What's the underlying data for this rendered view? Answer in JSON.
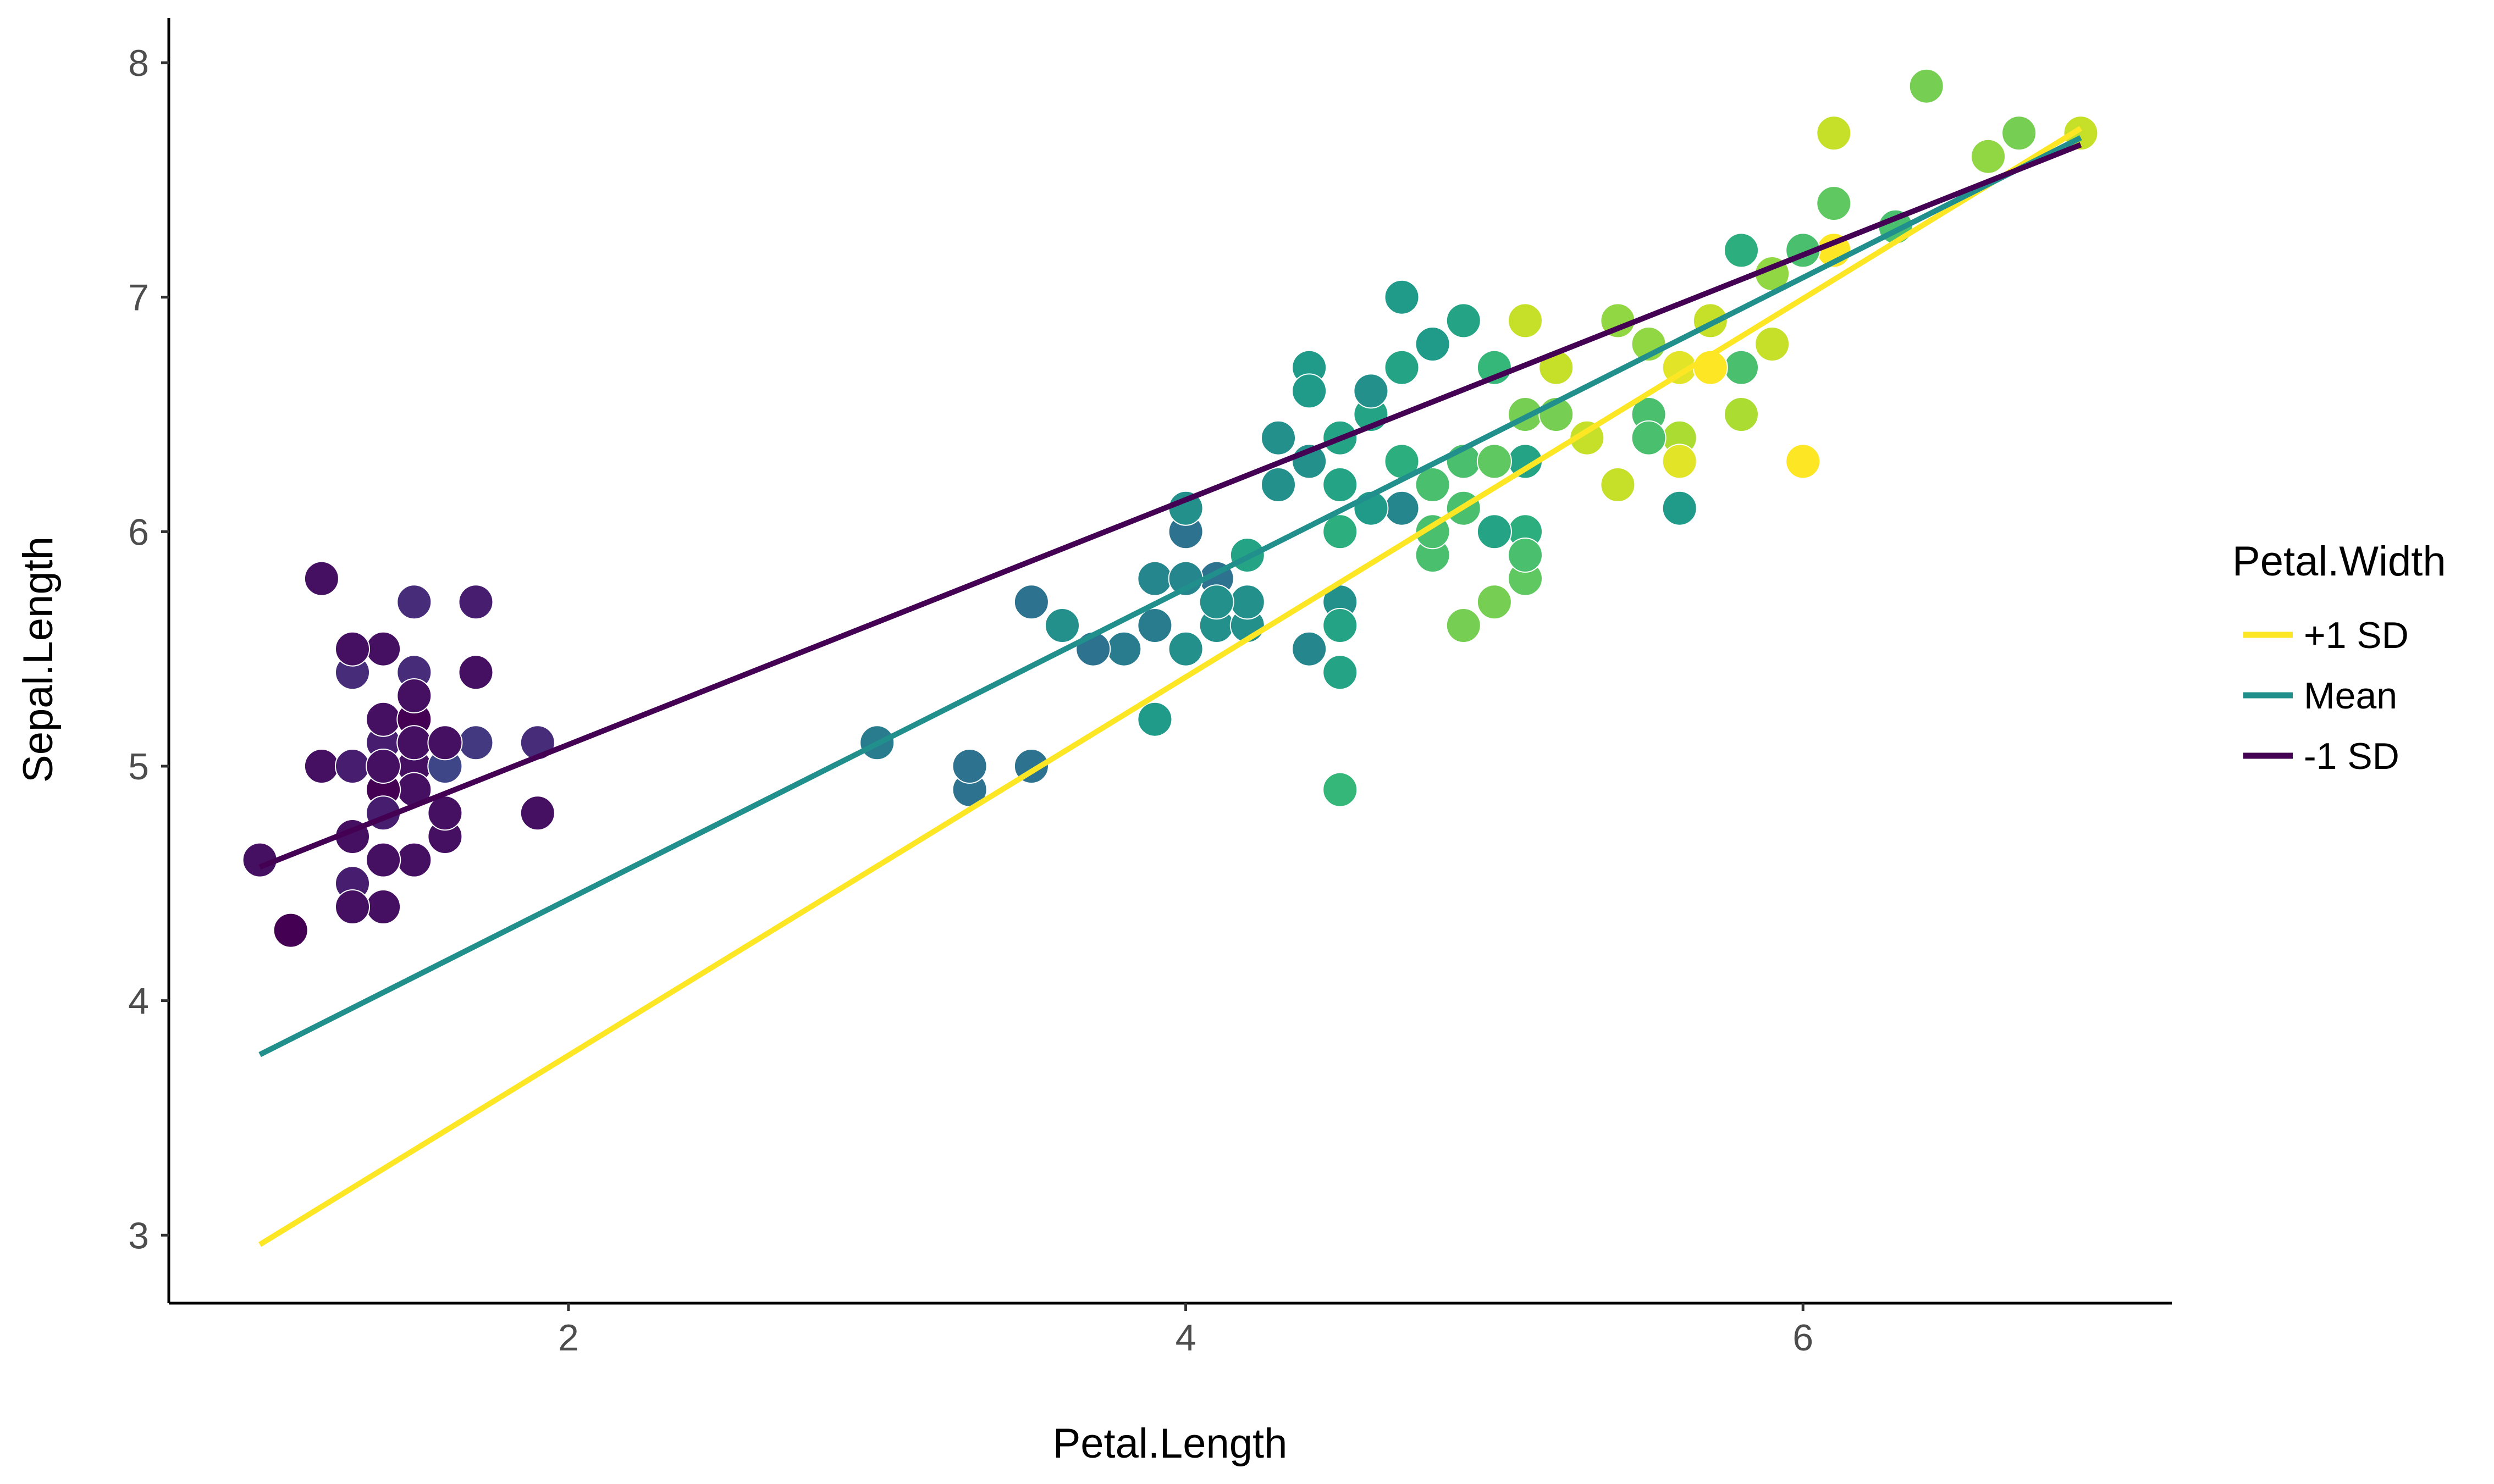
{
  "chart_data": {
    "type": "scatter",
    "xlabel": "Petal.Length",
    "ylabel": "Sepal.Length",
    "xlim": [
      0.705,
      7.195
    ],
    "ylim": [
      2.71,
      8.19
    ],
    "x_ticks": [
      2,
      4,
      6
    ],
    "y_ticks": [
      3,
      4,
      5,
      6,
      7,
      8
    ],
    "grid": false,
    "color_scale": {
      "variable": "Petal.Width",
      "min": 0.1,
      "max": 2.5,
      "palette": "viridis",
      "stops": [
        "#440154",
        "#482878",
        "#3E4A89",
        "#31688E",
        "#26828E",
        "#1F9E89",
        "#35B779",
        "#6DCD59",
        "#B4DE2C",
        "#FDE725"
      ]
    },
    "points": [
      {
        "x": 1.4,
        "y": 5.1,
        "w": 0.2
      },
      {
        "x": 1.4,
        "y": 4.9,
        "w": 0.2
      },
      {
        "x": 1.3,
        "y": 4.7,
        "w": 0.2
      },
      {
        "x": 1.5,
        "y": 4.6,
        "w": 0.2
      },
      {
        "x": 1.4,
        "y": 5.0,
        "w": 0.2
      },
      {
        "x": 1.7,
        "y": 5.4,
        "w": 0.4
      },
      {
        "x": 1.4,
        "y": 4.6,
        "w": 0.3
      },
      {
        "x": 1.5,
        "y": 5.0,
        "w": 0.2
      },
      {
        "x": 1.4,
        "y": 4.4,
        "w": 0.2
      },
      {
        "x": 1.5,
        "y": 4.9,
        "w": 0.1
      },
      {
        "x": 1.5,
        "y": 5.4,
        "w": 0.2
      },
      {
        "x": 1.6,
        "y": 4.8,
        "w": 0.2
      },
      {
        "x": 1.4,
        "y": 4.8,
        "w": 0.1
      },
      {
        "x": 1.1,
        "y": 4.3,
        "w": 0.1
      },
      {
        "x": 1.2,
        "y": 5.8,
        "w": 0.2
      },
      {
        "x": 1.5,
        "y": 5.7,
        "w": 0.4
      },
      {
        "x": 1.3,
        "y": 5.4,
        "w": 0.4
      },
      {
        "x": 1.4,
        "y": 5.1,
        "w": 0.3
      },
      {
        "x": 1.7,
        "y": 5.7,
        "w": 0.3
      },
      {
        "x": 1.5,
        "y": 5.1,
        "w": 0.3
      },
      {
        "x": 1.7,
        "y": 5.4,
        "w": 0.2
      },
      {
        "x": 1.5,
        "y": 5.1,
        "w": 0.4
      },
      {
        "x": 1.0,
        "y": 4.6,
        "w": 0.2
      },
      {
        "x": 1.7,
        "y": 5.1,
        "w": 0.5
      },
      {
        "x": 1.9,
        "y": 4.8,
        "w": 0.2
      },
      {
        "x": 1.6,
        "y": 5.0,
        "w": 0.2
      },
      {
        "x": 1.6,
        "y": 5.0,
        "w": 0.4
      },
      {
        "x": 1.5,
        "y": 5.2,
        "w": 0.2
      },
      {
        "x": 1.4,
        "y": 5.2,
        "w": 0.2
      },
      {
        "x": 1.6,
        "y": 4.7,
        "w": 0.2
      },
      {
        "x": 1.6,
        "y": 4.8,
        "w": 0.2
      },
      {
        "x": 1.5,
        "y": 5.4,
        "w": 0.4
      },
      {
        "x": 1.5,
        "y": 5.2,
        "w": 0.1
      },
      {
        "x": 1.4,
        "y": 5.5,
        "w": 0.2
      },
      {
        "x": 1.5,
        "y": 4.9,
        "w": 0.2
      },
      {
        "x": 1.2,
        "y": 5.0,
        "w": 0.2
      },
      {
        "x": 1.3,
        "y": 5.5,
        "w": 0.2
      },
      {
        "x": 1.4,
        "y": 4.9,
        "w": 0.1
      },
      {
        "x": 1.3,
        "y": 4.4,
        "w": 0.2
      },
      {
        "x": 1.5,
        "y": 5.1,
        "w": 0.2
      },
      {
        "x": 1.3,
        "y": 5.0,
        "w": 0.3
      },
      {
        "x": 1.3,
        "y": 4.5,
        "w": 0.3
      },
      {
        "x": 1.3,
        "y": 4.4,
        "w": 0.2
      },
      {
        "x": 1.6,
        "y": 5.0,
        "w": 0.6
      },
      {
        "x": 1.9,
        "y": 5.1,
        "w": 0.4
      },
      {
        "x": 1.4,
        "y": 4.8,
        "w": 0.3
      },
      {
        "x": 1.6,
        "y": 5.1,
        "w": 0.2
      },
      {
        "x": 1.4,
        "y": 4.6,
        "w": 0.2
      },
      {
        "x": 1.5,
        "y": 5.3,
        "w": 0.2
      },
      {
        "x": 1.4,
        "y": 5.0,
        "w": 0.2
      },
      {
        "x": 4.7,
        "y": 7.0,
        "w": 1.4
      },
      {
        "x": 4.5,
        "y": 6.4,
        "w": 1.5
      },
      {
        "x": 4.9,
        "y": 6.9,
        "w": 1.5
      },
      {
        "x": 4.0,
        "y": 5.5,
        "w": 1.3
      },
      {
        "x": 4.6,
        "y": 6.5,
        "w": 1.5
      },
      {
        "x": 4.5,
        "y": 5.7,
        "w": 1.3
      },
      {
        "x": 4.7,
        "y": 6.3,
        "w": 1.6
      },
      {
        "x": 3.3,
        "y": 4.9,
        "w": 1.0
      },
      {
        "x": 4.6,
        "y": 6.6,
        "w": 1.3
      },
      {
        "x": 3.9,
        "y": 5.2,
        "w": 1.4
      },
      {
        "x": 3.5,
        "y": 5.0,
        "w": 1.0
      },
      {
        "x": 4.2,
        "y": 5.9,
        "w": 1.5
      },
      {
        "x": 4.0,
        "y": 6.0,
        "w": 1.0
      },
      {
        "x": 4.7,
        "y": 6.1,
        "w": 1.4
      },
      {
        "x": 3.6,
        "y": 5.6,
        "w": 1.3
      },
      {
        "x": 4.4,
        "y": 6.7,
        "w": 1.4
      },
      {
        "x": 4.5,
        "y": 5.6,
        "w": 1.5
      },
      {
        "x": 4.1,
        "y": 5.8,
        "w": 1.0
      },
      {
        "x": 4.5,
        "y": 6.2,
        "w": 1.5
      },
      {
        "x": 3.9,
        "y": 5.6,
        "w": 1.1
      },
      {
        "x": 4.8,
        "y": 5.9,
        "w": 1.8
      },
      {
        "x": 4.0,
        "y": 6.1,
        "w": 1.3
      },
      {
        "x": 4.9,
        "y": 6.3,
        "w": 1.5
      },
      {
        "x": 4.7,
        "y": 6.1,
        "w": 1.2
      },
      {
        "x": 4.3,
        "y": 6.4,
        "w": 1.3
      },
      {
        "x": 4.4,
        "y": 6.6,
        "w": 1.4
      },
      {
        "x": 4.8,
        "y": 6.8,
        "w": 1.4
      },
      {
        "x": 5.0,
        "y": 6.7,
        "w": 1.7
      },
      {
        "x": 4.5,
        "y": 6.0,
        "w": 1.5
      },
      {
        "x": 3.5,
        "y": 5.7,
        "w": 1.0
      },
      {
        "x": 3.8,
        "y": 5.5,
        "w": 1.1
      },
      {
        "x": 3.7,
        "y": 5.5,
        "w": 1.0
      },
      {
        "x": 3.9,
        "y": 5.8,
        "w": 1.2
      },
      {
        "x": 5.1,
        "y": 6.0,
        "w": 1.6
      },
      {
        "x": 4.5,
        "y": 5.4,
        "w": 1.5
      },
      {
        "x": 4.5,
        "y": 6.0,
        "w": 1.6
      },
      {
        "x": 4.7,
        "y": 6.7,
        "w": 1.5
      },
      {
        "x": 4.4,
        "y": 6.3,
        "w": 1.3
      },
      {
        "x": 4.1,
        "y": 5.6,
        "w": 1.3
      },
      {
        "x": 4.0,
        "y": 5.5,
        "w": 1.3
      },
      {
        "x": 4.4,
        "y": 5.5,
        "w": 1.2
      },
      {
        "x": 4.6,
        "y": 6.1,
        "w": 1.4
      },
      {
        "x": 4.0,
        "y": 5.8,
        "w": 1.2
      },
      {
        "x": 3.3,
        "y": 5.0,
        "w": 1.0
      },
      {
        "x": 4.2,
        "y": 5.6,
        "w": 1.3
      },
      {
        "x": 4.2,
        "y": 5.7,
        "w": 1.2
      },
      {
        "x": 4.2,
        "y": 5.7,
        "w": 1.3
      },
      {
        "x": 4.3,
        "y": 6.2,
        "w": 1.3
      },
      {
        "x": 3.0,
        "y": 5.1,
        "w": 1.1
      },
      {
        "x": 4.1,
        "y": 5.7,
        "w": 1.3
      },
      {
        "x": 6.0,
        "y": 6.3,
        "w": 2.5
      },
      {
        "x": 5.1,
        "y": 5.8,
        "w": 1.9
      },
      {
        "x": 5.9,
        "y": 7.1,
        "w": 2.1
      },
      {
        "x": 5.6,
        "y": 6.3,
        "w": 1.8
      },
      {
        "x": 5.8,
        "y": 6.5,
        "w": 2.2
      },
      {
        "x": 6.6,
        "y": 7.6,
        "w": 2.1
      },
      {
        "x": 4.5,
        "y": 4.9,
        "w": 1.7
      },
      {
        "x": 6.3,
        "y": 7.3,
        "w": 1.8
      },
      {
        "x": 5.8,
        "y": 6.7,
        "w": 1.8
      },
      {
        "x": 6.1,
        "y": 7.2,
        "w": 2.5
      },
      {
        "x": 5.1,
        "y": 6.5,
        "w": 2.0
      },
      {
        "x": 5.3,
        "y": 6.4,
        "w": 1.9
      },
      {
        "x": 5.5,
        "y": 6.8,
        "w": 2.1
      },
      {
        "x": 5.0,
        "y": 5.7,
        "w": 2.0
      },
      {
        "x": 5.1,
        "y": 5.8,
        "w": 2.4
      },
      {
        "x": 5.3,
        "y": 6.4,
        "w": 2.3
      },
      {
        "x": 5.5,
        "y": 6.5,
        "w": 1.8
      },
      {
        "x": 6.7,
        "y": 7.7,
        "w": 2.2
      },
      {
        "x": 6.9,
        "y": 7.7,
        "w": 2.3
      },
      {
        "x": 5.0,
        "y": 6.0,
        "w": 1.5
      },
      {
        "x": 5.7,
        "y": 6.9,
        "w": 2.3
      },
      {
        "x": 4.9,
        "y": 5.6,
        "w": 2.0
      },
      {
        "x": 6.7,
        "y": 7.7,
        "w": 2.0
      },
      {
        "x": 4.9,
        "y": 6.3,
        "w": 1.8
      },
      {
        "x": 5.7,
        "y": 6.7,
        "w": 2.1
      },
      {
        "x": 6.0,
        "y": 7.2,
        "w": 1.8
      },
      {
        "x": 4.8,
        "y": 6.2,
        "w": 1.8
      },
      {
        "x": 4.9,
        "y": 6.1,
        "w": 1.8
      },
      {
        "x": 5.6,
        "y": 6.4,
        "w": 2.1
      },
      {
        "x": 5.8,
        "y": 7.2,
        "w": 1.6
      },
      {
        "x": 6.1,
        "y": 7.4,
        "w": 1.9
      },
      {
        "x": 6.4,
        "y": 7.9,
        "w": 2.0
      },
      {
        "x": 5.6,
        "y": 6.4,
        "w": 2.2
      },
      {
        "x": 5.1,
        "y": 6.3,
        "w": 1.5
      },
      {
        "x": 5.6,
        "y": 6.1,
        "w": 1.4
      },
      {
        "x": 6.1,
        "y": 7.7,
        "w": 2.3
      },
      {
        "x": 5.6,
        "y": 6.3,
        "w": 2.4
      },
      {
        "x": 5.5,
        "y": 6.4,
        "w": 1.8
      },
      {
        "x": 4.8,
        "y": 6.0,
        "w": 1.8
      },
      {
        "x": 5.4,
        "y": 6.9,
        "w": 2.1
      },
      {
        "x": 5.6,
        "y": 6.7,
        "w": 2.4
      },
      {
        "x": 5.1,
        "y": 6.9,
        "w": 2.3
      },
      {
        "x": 5.1,
        "y": 5.8,
        "w": 1.9
      },
      {
        "x": 5.9,
        "y": 6.8,
        "w": 2.3
      },
      {
        "x": 5.7,
        "y": 6.7,
        "w": 2.5
      },
      {
        "x": 5.2,
        "y": 6.7,
        "w": 2.3
      },
      {
        "x": 5.0,
        "y": 6.3,
        "w": 1.9
      },
      {
        "x": 5.2,
        "y": 6.5,
        "w": 2.0
      },
      {
        "x": 5.4,
        "y": 6.2,
        "w": 2.3
      },
      {
        "x": 5.1,
        "y": 5.9,
        "w": 1.8
      }
    ],
    "series": [
      {
        "name": "+1 SD",
        "color": "#FDE725",
        "x": [
          1.0,
          6.9
        ],
        "y": [
          2.96,
          7.72
        ]
      },
      {
        "name": "Mean",
        "color": "#21908C",
        "x": [
          1.0,
          6.9
        ],
        "y": [
          3.77,
          7.68
        ]
      },
      {
        "name": "-1 SD",
        "color": "#440154",
        "x": [
          1.0,
          6.9
        ],
        "y": [
          4.57,
          7.65
        ]
      }
    ],
    "legend": {
      "title": "Petal.Width",
      "placement": "right",
      "entries": [
        "+1 SD",
        "Mean",
        "-1 SD"
      ]
    }
  }
}
